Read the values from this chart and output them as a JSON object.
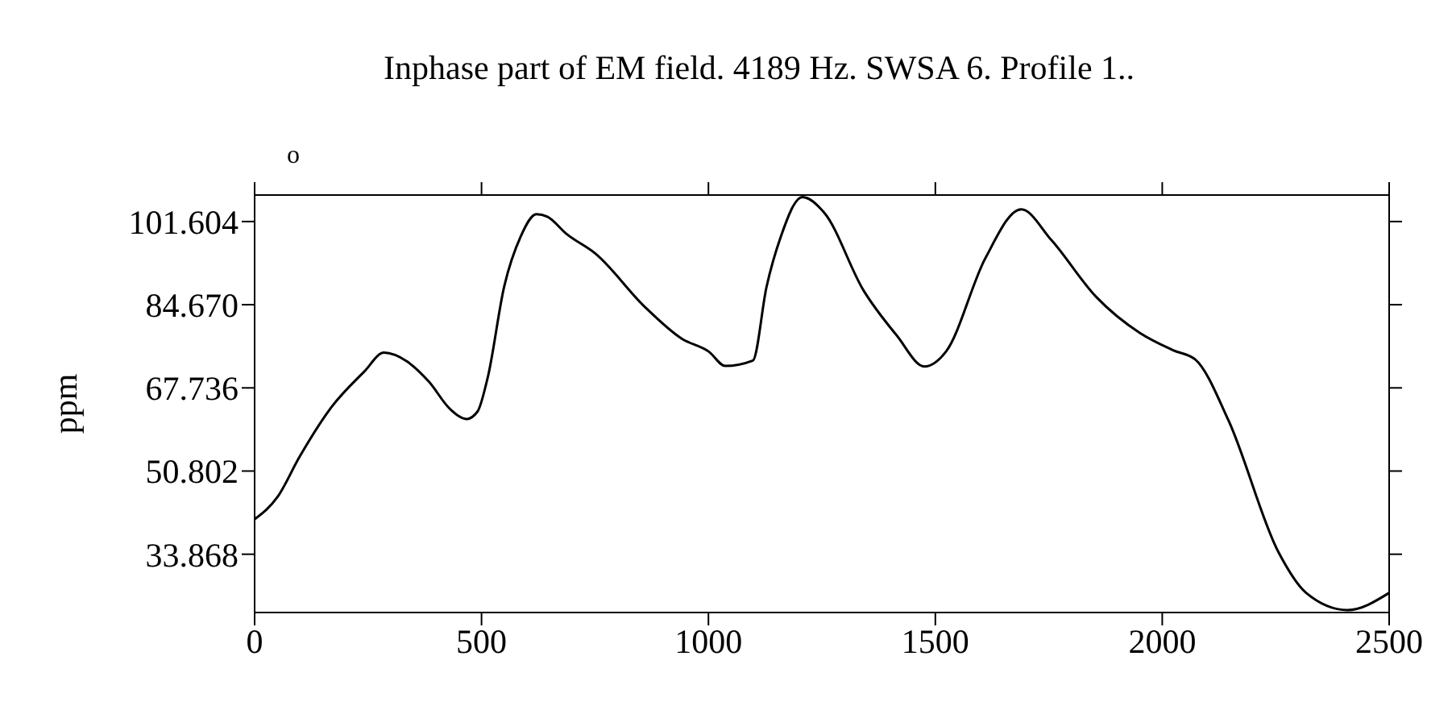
{
  "chart_data": {
    "type": "line",
    "title": "Inphase part of EM field. 4189 Hz. SWSA 6. Profile 1..",
    "ylabel": "ppm",
    "annotations": [
      "o"
    ],
    "x": [
      0,
      51,
      99,
      170,
      241,
      285,
      336,
      384,
      431,
      467,
      491,
      514,
      550,
      586,
      621,
      645,
      687,
      752,
      859,
      942,
      1001,
      1037,
      1098,
      1128,
      1159,
      1207,
      1256,
      1341,
      1415,
      1476,
      1524,
      1610,
      1689,
      1756,
      1854,
      1951,
      2024,
      2073,
      2146,
      2256,
      2317,
      2408,
      2500
    ],
    "series": [
      {
        "color": "#000000",
        "values": [
          41.0,
          45.6,
          53.7,
          63.9,
          71.0,
          74.9,
          73.1,
          69.0,
          63.4,
          61.4,
          62.9,
          70.0,
          88.4,
          98.5,
          103.1,
          102.6,
          99.1,
          95.0,
          84.3,
          77.7,
          75.1,
          72.2,
          73.3,
          88.3,
          98.4,
          106.6,
          103.3,
          87.7,
          78.4,
          72.1,
          75.2,
          94.1,
          104.1,
          97.8,
          86.3,
          78.9,
          75.4,
          73.5,
          61.1,
          34.3,
          26.0,
          22.5,
          26.0
        ]
      }
    ],
    "xlim": [
      0,
      2500
    ],
    "xticks": [
      0,
      500,
      1000,
      1500,
      2000,
      2500
    ],
    "ylim": [
      22,
      107
    ],
    "yticks": [
      {
        "value": 33.868,
        "label": "33.868"
      },
      {
        "value": 50.802,
        "label": "50.802"
      },
      {
        "value": 67.736,
        "label": "67.736"
      },
      {
        "value": 84.67,
        "label": "84.670"
      },
      {
        "value": 101.604,
        "label": "101.604"
      }
    ],
    "marker": "none",
    "line_style": "solid"
  }
}
